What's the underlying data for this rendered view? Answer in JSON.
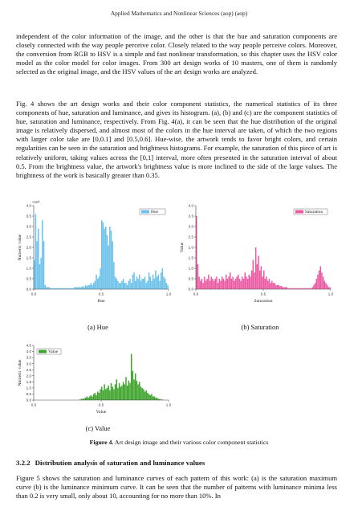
{
  "header": {
    "running_title": "Applied Mathematics and Nonlinear Sciences (aop) (aop)"
  },
  "paragraphs": {
    "p1": "independent of the color information of the image, and the other is that the hue and saturation components are closely connected with the way people perceive color. Closely related to the way people perceive colors. Moreover, the conversion from RGB to HSV is a simple and fast nonlinear transformation, so this chapter uses the HSV color model as the color model for color images. From 300 art design works of 10 masters, one of them is randomly selected as the original image, and the HSV values of the art design works are analyzed.",
    "p2": "Fig. 4 shows the art design works and their color component statistics, the numerical statistics of its three components of hue, saturation and luminance, and gives its histogram. (a), (b) and (c) are the component statistics of hue, saturation and luminance, respectively. From Fig. 4(a), it can be seen that the hue distribution of the original image is relatively dispersed, and almost most of the colors in the hue interval are taken, of which the two regions with larger color take are [0,0.1] and [0.5,0.6]. Hue-wise, the artwork tends to favor bright colors, and certain regularities can be seen in the saturation and brightness histograms. For example, the saturation of this piece of art is relatively uniform, taking values across the [0,1] interval, more often presented in the saturation interval of about 0.5. From the brightness value, the artwork's brightness value is more inclined to the side of the large values. The brightness of the work is basically greater than 0.35.",
    "p3": "Figure 5 shows the saturation and luminance curves of each pattern of this work: (a) is the saturation maximum curve (b) is the luminance minimum curve. It can be seen that the number of patterns with luminance minima less than 0.2 is very small, only about 10, accounting for no more than 10%. In"
  },
  "figure": {
    "caption_label": "Figure 4.",
    "caption_text": "Art design image and their various color component statistics",
    "subcaptions": {
      "a": "(a) Hue",
      "b": "(b) Saturation",
      "c": "(c) Value"
    }
  },
  "section": {
    "number": "3.2.2",
    "title": "Distribution analysis of saturation and luminance values"
  },
  "chart_data": [
    {
      "type": "bar",
      "panel": "a",
      "xlabel": "Hue",
      "ylabel": "Numeric value",
      "y_multiplier": "×10²",
      "xlim": [
        0,
        1
      ],
      "ylim": [
        0,
        4.0
      ],
      "x_ticks": [
        "0.0",
        "0.5",
        "1.0"
      ],
      "y_ticks": [
        "0.0",
        "0.5",
        "1.0",
        "1.5",
        "2.0",
        "2.5",
        "3.0",
        "3.5",
        "4.0"
      ],
      "legend": "Hue",
      "legend_position": "top-right",
      "color": "#6cc1ea",
      "bins": 100,
      "x": [
        0.0,
        0.01,
        0.02,
        0.03,
        0.04,
        0.05,
        0.06,
        0.07,
        0.08,
        0.09,
        0.1,
        0.11,
        0.12,
        0.13,
        0.14,
        0.15,
        0.16,
        0.17,
        0.18,
        0.19,
        0.2,
        0.21,
        0.22,
        0.23,
        0.24,
        0.25,
        0.26,
        0.27,
        0.28,
        0.29,
        0.3,
        0.31,
        0.32,
        0.33,
        0.34,
        0.35,
        0.36,
        0.37,
        0.38,
        0.39,
        0.4,
        0.41,
        0.42,
        0.43,
        0.44,
        0.45,
        0.46,
        0.47,
        0.48,
        0.49,
        0.5,
        0.51,
        0.52,
        0.53,
        0.54,
        0.55,
        0.56,
        0.57,
        0.58,
        0.59,
        0.6,
        0.61,
        0.62,
        0.63,
        0.64,
        0.65,
        0.66,
        0.67,
        0.68,
        0.69,
        0.7,
        0.71,
        0.72,
        0.73,
        0.74,
        0.75,
        0.76,
        0.77,
        0.78,
        0.79,
        0.8,
        0.81,
        0.82,
        0.83,
        0.84,
        0.85,
        0.86,
        0.87,
        0.88,
        0.89,
        0.9,
        0.91,
        0.92,
        0.93,
        0.94,
        0.95,
        0.96,
        0.97,
        0.98,
        0.99
      ],
      "values": [
        1.4,
        3.6,
        2.3,
        2.9,
        1.2,
        1.5,
        3.3,
        2.3,
        0.2,
        0.1,
        0.1,
        0.1,
        0.05,
        0.05,
        0.05,
        0.05,
        0.05,
        0.05,
        0.05,
        0.05,
        0.05,
        0.05,
        0.05,
        0.05,
        0.05,
        0.05,
        0.05,
        0.05,
        0.05,
        0.05,
        0.1,
        0.1,
        0.1,
        0.1,
        0.1,
        0.1,
        0.15,
        0.1,
        0.2,
        0.15,
        0.2,
        0.2,
        0.3,
        0.2,
        0.3,
        0.4,
        0.7,
        0.5,
        0.6,
        1.0,
        3.3,
        3.2,
        2.9,
        3.0,
        2.6,
        2.1,
        3.0,
        2.8,
        2.3,
        1.3,
        0.6,
        0.5,
        0.4,
        0.3,
        0.3,
        0.4,
        0.5,
        0.3,
        0.3,
        0.2,
        0.4,
        0.5,
        0.3,
        0.7,
        0.8,
        0.4,
        0.6,
        0.5,
        0.7,
        0.4,
        0.5,
        0.5,
        0.6,
        0.3,
        0.4,
        0.8,
        0.6,
        0.4,
        0.7,
        0.5,
        0.9,
        0.6,
        0.7,
        0.4,
        0.8,
        1.0,
        0.6,
        0.5,
        0.3,
        0.2
      ]
    },
    {
      "type": "bar",
      "panel": "b",
      "xlabel": "Saturation",
      "ylabel": "Value",
      "xlim": [
        0,
        1
      ],
      "ylim": [
        0,
        4.0
      ],
      "x_ticks": [
        "0.0",
        "0.5",
        "1.0"
      ],
      "y_ticks": [
        "0.0",
        "0.5",
        "1.0",
        "1.5",
        "2.0",
        "2.5",
        "3.0",
        "3.5",
        "4.0"
      ],
      "legend": "Saturation",
      "legend_position": "top-right",
      "color": "#e95aa3",
      "bins": 100,
      "x": [
        0.0,
        0.01,
        0.02,
        0.03,
        0.04,
        0.05,
        0.06,
        0.07,
        0.08,
        0.09,
        0.1,
        0.11,
        0.12,
        0.13,
        0.14,
        0.15,
        0.16,
        0.17,
        0.18,
        0.19,
        0.2,
        0.21,
        0.22,
        0.23,
        0.24,
        0.25,
        0.26,
        0.27,
        0.28,
        0.29,
        0.3,
        0.31,
        0.32,
        0.33,
        0.34,
        0.35,
        0.36,
        0.37,
        0.38,
        0.39,
        0.4,
        0.41,
        0.42,
        0.43,
        0.44,
        0.45,
        0.46,
        0.47,
        0.48,
        0.49,
        0.5,
        0.51,
        0.52,
        0.53,
        0.54,
        0.55,
        0.56,
        0.57,
        0.58,
        0.59,
        0.6,
        0.61,
        0.62,
        0.63,
        0.64,
        0.65,
        0.66,
        0.67,
        0.68,
        0.69,
        0.7,
        0.71,
        0.72,
        0.73,
        0.74,
        0.75,
        0.76,
        0.77,
        0.78,
        0.79,
        0.8,
        0.81,
        0.82,
        0.83,
        0.84,
        0.85,
        0.86,
        0.87,
        0.88,
        0.89,
        0.9,
        0.91,
        0.92,
        0.93,
        0.94,
        0.95,
        0.96,
        0.97,
        0.98,
        0.99
      ],
      "values": [
        3.5,
        1.2,
        0.6,
        0.4,
        0.5,
        0.3,
        0.6,
        0.4,
        0.5,
        0.7,
        0.4,
        0.6,
        0.5,
        0.4,
        0.5,
        0.6,
        0.3,
        0.5,
        0.4,
        0.6,
        0.5,
        0.4,
        0.7,
        0.5,
        0.6,
        0.8,
        0.5,
        0.6,
        0.4,
        0.5,
        0.6,
        0.7,
        0.5,
        0.4,
        0.6,
        0.5,
        0.8,
        0.6,
        0.5,
        0.7,
        0.6,
        0.9,
        1.4,
        0.8,
        2.0,
        1.2,
        1.6,
        0.9,
        1.1,
        0.6,
        0.9,
        0.5,
        0.6,
        0.4,
        0.5,
        0.3,
        0.4,
        0.3,
        0.3,
        0.2,
        0.2,
        0.2,
        0.15,
        0.15,
        0.1,
        0.1,
        0.1,
        0.1,
        0.05,
        0.05,
        0.05,
        0.05,
        0.05,
        0.05,
        0.05,
        0.05,
        0.05,
        0.05,
        0.05,
        0.05,
        0.05,
        0.05,
        0.05,
        0.05,
        0.05,
        0.05,
        0.1,
        0.2,
        0.3,
        0.5,
        0.7,
        0.9,
        1.1,
        0.8,
        0.6,
        0.4,
        0.3,
        0.2,
        0.1,
        0.1
      ]
    },
    {
      "type": "bar",
      "panel": "c",
      "xlabel": "Value",
      "ylabel": "Numeric value",
      "xlim": [
        0,
        1
      ],
      "ylim": [
        0,
        4.5
      ],
      "x_ticks": [
        "0.0",
        "0.5",
        "1.0"
      ],
      "y_ticks": [
        "0.0",
        "0.5",
        "1.0",
        "1.5",
        "2.0",
        "2.5",
        "3.0",
        "3.5",
        "4.0",
        "4.5"
      ],
      "legend": "Value",
      "legend_position": "top-left",
      "color": "#3fa42d",
      "bins": 100,
      "x": [
        0.0,
        0.01,
        0.02,
        0.03,
        0.04,
        0.05,
        0.06,
        0.07,
        0.08,
        0.09,
        0.1,
        0.11,
        0.12,
        0.13,
        0.14,
        0.15,
        0.16,
        0.17,
        0.18,
        0.19,
        0.2,
        0.21,
        0.22,
        0.23,
        0.24,
        0.25,
        0.26,
        0.27,
        0.28,
        0.29,
        0.3,
        0.31,
        0.32,
        0.33,
        0.34,
        0.35,
        0.36,
        0.37,
        0.38,
        0.39,
        0.4,
        0.41,
        0.42,
        0.43,
        0.44,
        0.45,
        0.46,
        0.47,
        0.48,
        0.49,
        0.5,
        0.51,
        0.52,
        0.53,
        0.54,
        0.55,
        0.56,
        0.57,
        0.58,
        0.59,
        0.6,
        0.61,
        0.62,
        0.63,
        0.64,
        0.65,
        0.66,
        0.67,
        0.68,
        0.69,
        0.7,
        0.71,
        0.72,
        0.73,
        0.74,
        0.75,
        0.76,
        0.77,
        0.78,
        0.79,
        0.8,
        0.81,
        0.82,
        0.83,
        0.84,
        0.85,
        0.86,
        0.87,
        0.88,
        0.89,
        0.9,
        0.91,
        0.92,
        0.93,
        0.94,
        0.95,
        0.96,
        0.97,
        0.98,
        0.99
      ],
      "values": [
        0,
        0,
        0,
        0,
        0,
        0,
        0,
        0,
        0,
        0,
        0,
        0,
        0,
        0,
        0,
        0,
        0,
        0,
        0,
        0,
        0,
        0,
        0,
        0,
        0,
        0,
        0,
        0,
        0,
        0,
        0,
        0,
        0,
        0,
        0.05,
        0.1,
        0.1,
        0.15,
        0.2,
        0.3,
        0.2,
        0.3,
        0.4,
        0.3,
        0.5,
        0.6,
        0.4,
        0.7,
        0.6,
        0.9,
        1.1,
        0.8,
        1.3,
        0.9,
        1.0,
        1.2,
        0.8,
        1.4,
        1.1,
        0.9,
        1.3,
        1.7,
        1.0,
        1.4,
        1.1,
        1.2,
        1.5,
        1.3,
        1.9,
        1.2,
        1.6,
        1.4,
        3.8,
        2.4,
        1.7,
        2.2,
        1.6,
        1.3,
        1.5,
        1.1,
        1.0,
        0.9,
        0.7,
        0.8,
        0.6,
        0.5,
        0.4,
        0.5,
        0.3,
        0.3,
        0.2,
        0.2,
        0.1,
        0.1,
        0.05,
        0.05,
        0,
        0,
        0,
        0
      ]
    }
  ]
}
